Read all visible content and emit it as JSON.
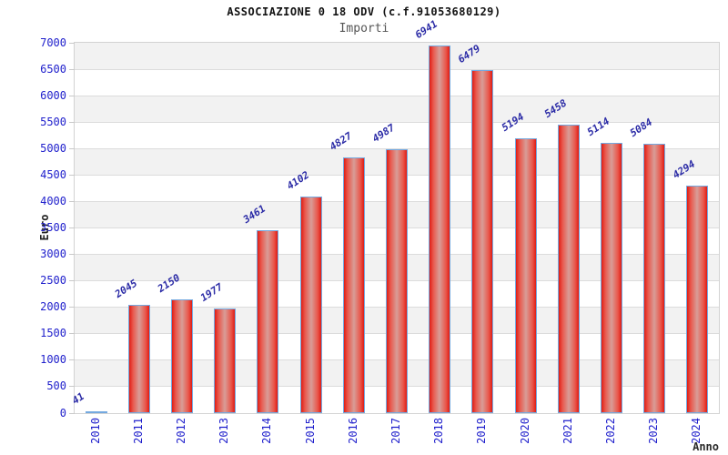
{
  "chart_data": {
    "type": "bar",
    "title": "ASSOCIAZIONE 0 18 ODV (c.f.91053680129)",
    "subtitle": "Importi",
    "xlabel": "Anno",
    "ylabel": "Euro",
    "categories": [
      "2010",
      "2011",
      "2012",
      "2013",
      "2014",
      "2015",
      "2016",
      "2017",
      "2018",
      "2019",
      "2020",
      "2021",
      "2022",
      "2023",
      "2024"
    ],
    "values": [
      41,
      2045,
      2150,
      1977,
      3461,
      4102,
      4827,
      4987,
      6941,
      6479,
      5194,
      5458,
      5114,
      5084,
      4294
    ],
    "ylim": [
      0,
      7000
    ],
    "ytick_step": 500,
    "grid": true,
    "legend": false,
    "value_labels_rotated": true,
    "colors": {
      "bar_fill_edge": "#df1d14",
      "bar_fill_mid": "#e9564b",
      "bar_fill_center": "#d89d97",
      "bar_border": "#74a9e0",
      "tick_label": "#2020cc",
      "value_label": "#2b2ba6",
      "band_gray": "#f2f2f2",
      "band_white": "#ffffff",
      "gridline": "#dcdcdc",
      "plot_border": "#d3d3d3",
      "tick_mark": "#c9c9c9",
      "title": "#111111",
      "subtitle": "#555555",
      "axis_title": "#222222"
    }
  }
}
